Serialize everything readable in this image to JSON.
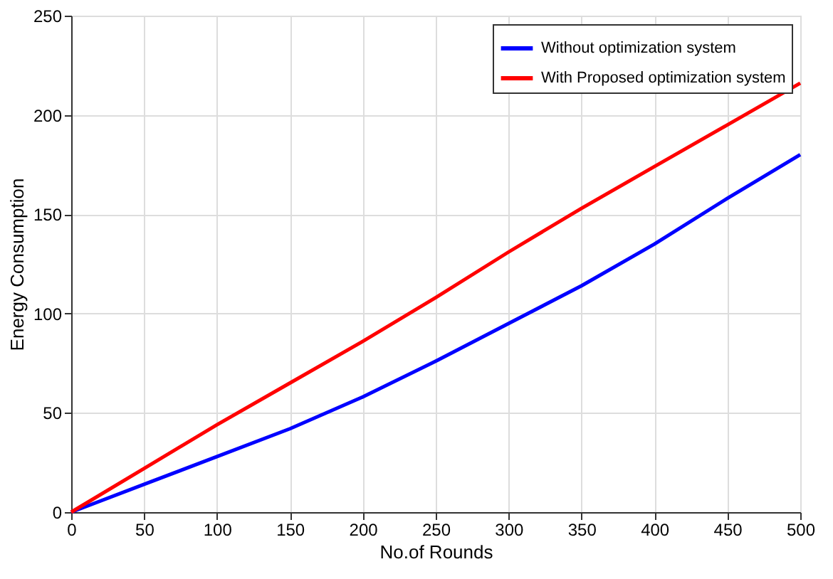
{
  "chart_data": {
    "type": "line",
    "xlabel": "No.of Rounds",
    "ylabel": "Energy Consumption",
    "x": [
      0,
      50,
      100,
      150,
      200,
      250,
      300,
      350,
      400,
      450,
      500
    ],
    "series": [
      {
        "name": "Without optimization system",
        "color": "#0000ff",
        "values": [
          0,
          14,
          28,
          42,
          58,
          76,
          95,
          114,
          135,
          158,
          180
        ]
      },
      {
        "name": "With Proposed optimization system",
        "color": "#ff0000",
        "values": [
          0,
          22,
          44,
          65,
          86,
          108,
          131,
          153,
          174,
          195,
          216
        ]
      }
    ],
    "xlim": [
      0,
      500
    ],
    "xticks": [
      0,
      50,
      100,
      150,
      200,
      250,
      300,
      350,
      400,
      450,
      500
    ],
    "ylim": [
      0,
      250
    ],
    "yticks": [
      0,
      50,
      100,
      150,
      200,
      250
    ],
    "grid": true,
    "legend": "top right",
    "line_style": "solid",
    "marker": "none"
  }
}
